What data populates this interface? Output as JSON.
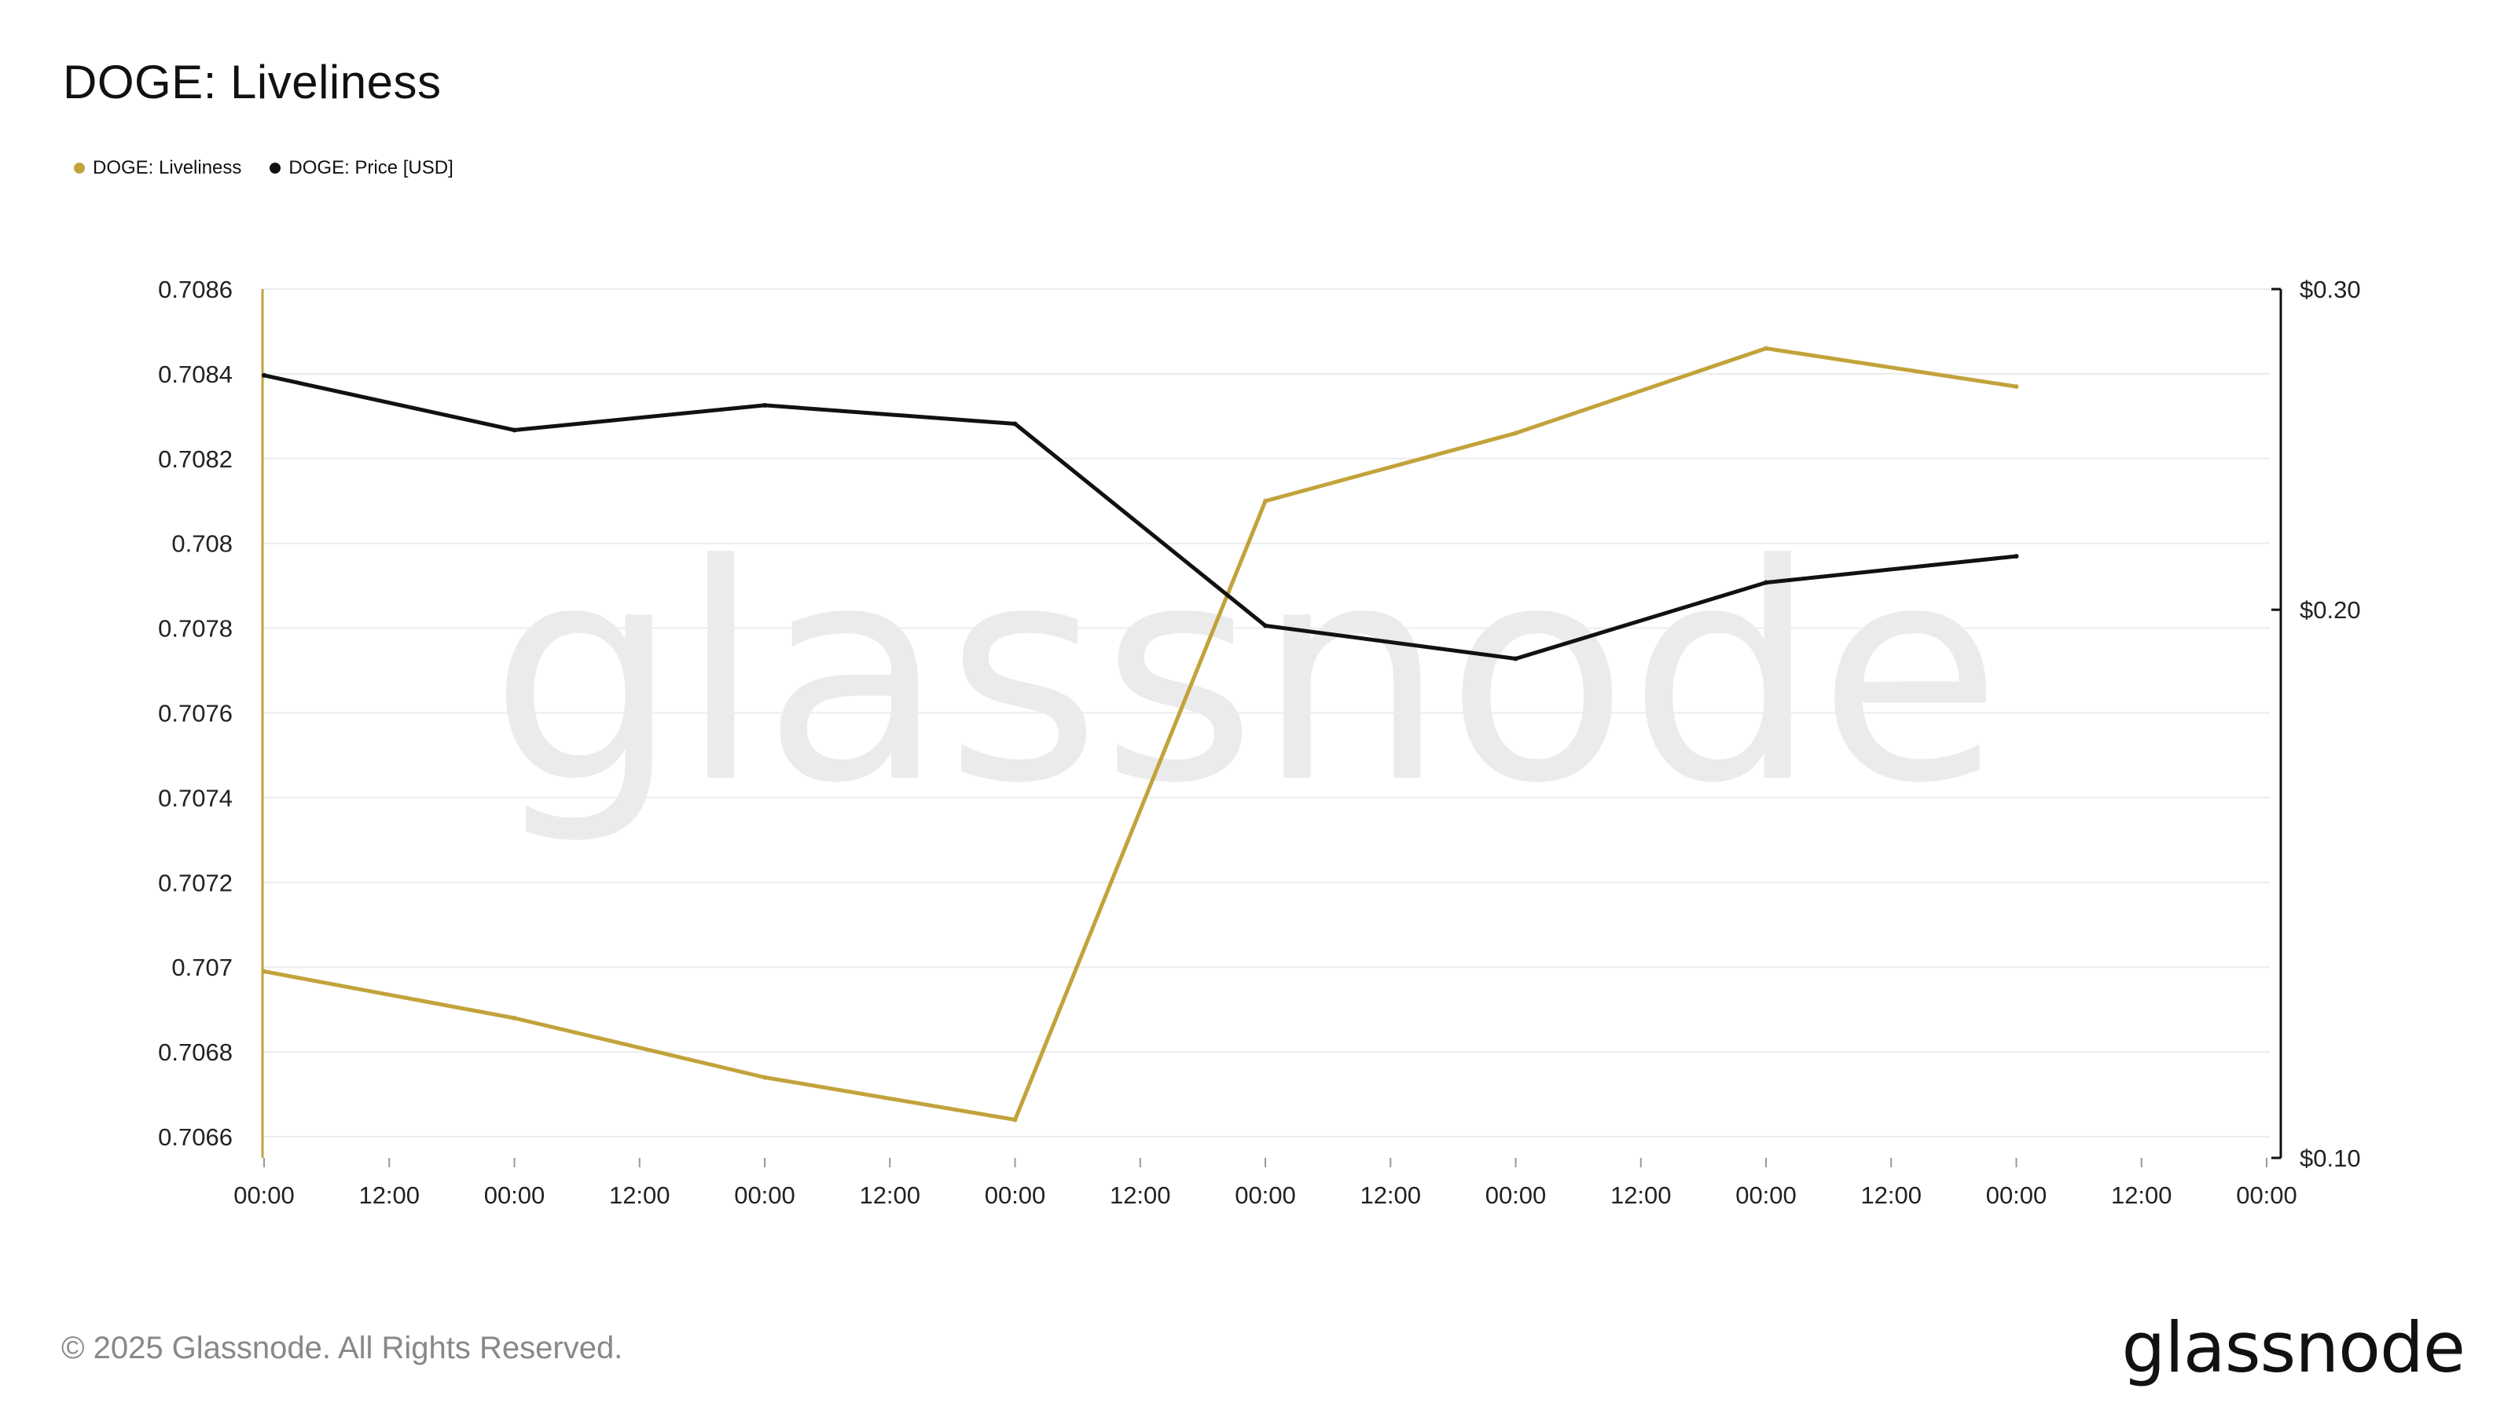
{
  "title": "DOGE: Liveliness",
  "watermark": "glassnode",
  "footer": {
    "copyright": "© 2025 Glassnode. All Rights Reserved.",
    "logo": "glassnode"
  },
  "colors": {
    "liveliness": "#C2A33B",
    "price": "#111111",
    "grid": "#ececec",
    "watermark": "#ebebeb"
  },
  "chart_data": {
    "type": "line",
    "title": "DOGE: Liveliness",
    "x_tick_labels": [
      "00:00",
      "12:00",
      "00:00",
      "12:00",
      "00:00",
      "12:00",
      "00:00",
      "12:00",
      "00:00",
      "12:00",
      "00:00",
      "12:00",
      "00:00",
      "12:00",
      "00:00",
      "12:00",
      "00:00"
    ],
    "x_range": [
      0,
      16
    ],
    "y_left": {
      "range": [
        0.70655,
        0.7086
      ],
      "ticks": [
        0.7086,
        0.7084,
        0.7082,
        0.708,
        0.7078,
        0.7076,
        0.7074,
        0.7072,
        0.707,
        0.7068,
        0.7066
      ],
      "tick_labels": [
        "0.7086",
        "0.7084",
        "0.7082",
        "0.708",
        "0.7078",
        "0.7076",
        "0.7074",
        "0.7072",
        "0.707",
        "0.7068",
        "0.7066"
      ]
    },
    "y_right": {
      "scale": "log",
      "range": [
        0.1,
        0.3
      ],
      "ticks": [
        0.3,
        0.2,
        0.1
      ],
      "tick_labels": [
        "$0.30",
        "$0.20",
        "$0.10"
      ]
    },
    "legend_position": "top-left",
    "grid": true,
    "series": [
      {
        "name": "DOGE: Liveliness",
        "axis": "left",
        "x": [
          0,
          2,
          4,
          6,
          8,
          10,
          12,
          14
        ],
        "values": [
          0.70699,
          0.70688,
          0.70674,
          0.70664,
          0.7081,
          0.70826,
          0.70846,
          0.70837
        ]
      },
      {
        "name": "DOGE: Price [USD]",
        "axis": "right",
        "x": [
          0,
          2,
          4,
          6,
          8,
          10,
          12,
          14
        ],
        "values": [
          0.269,
          0.251,
          0.259,
          0.253,
          0.196,
          0.188,
          0.207,
          0.214
        ]
      }
    ]
  }
}
